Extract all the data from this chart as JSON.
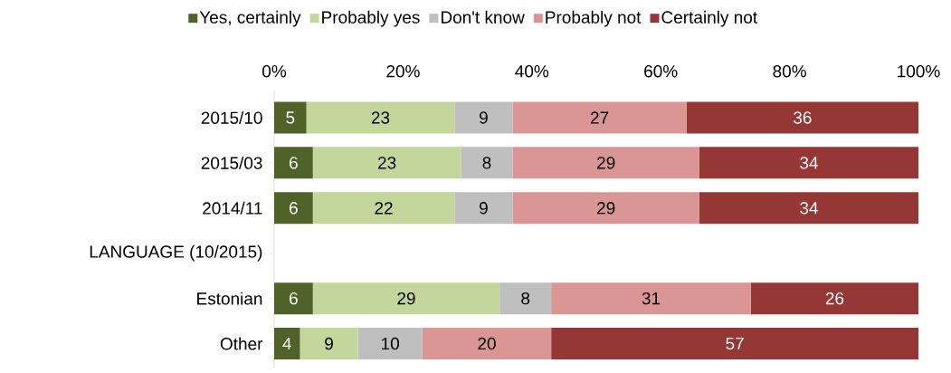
{
  "chart_data": {
    "type": "bar",
    "orientation": "horizontal",
    "stacked": true,
    "data_labels": true,
    "legend": "top",
    "grid": false,
    "categories": [
      "2015/10",
      "2015/03",
      "2014/11",
      "LANGUAGE (10/2015)",
      "Estonian",
      "Other"
    ],
    "xlim": [
      0,
      100
    ],
    "xticks": [
      {
        "value": 0,
        "label": "0%"
      },
      {
        "value": 20,
        "label": "20%"
      },
      {
        "value": 40,
        "label": "40%"
      },
      {
        "value": 60,
        "label": "60%"
      },
      {
        "value": 80,
        "label": "80%"
      },
      {
        "value": 100,
        "label": "100%"
      }
    ],
    "series": [
      {
        "name": "Yes, certainly",
        "color": "#4f6228",
        "values": [
          5,
          6,
          6,
          null,
          6,
          4
        ]
      },
      {
        "name": "Probably yes",
        "color": "#c3d69b",
        "values": [
          23,
          23,
          22,
          null,
          29,
          9
        ]
      },
      {
        "name": "Don't know",
        "color": "#bfbfbf",
        "values": [
          9,
          8,
          9,
          null,
          8,
          10
        ]
      },
      {
        "name": "Probably not",
        "color": "#d99694",
        "values": [
          27,
          29,
          29,
          null,
          31,
          20
        ]
      },
      {
        "name": "Certainly not",
        "color": "#953735",
        "values": [
          36,
          34,
          34,
          null,
          26,
          57
        ]
      }
    ]
  }
}
